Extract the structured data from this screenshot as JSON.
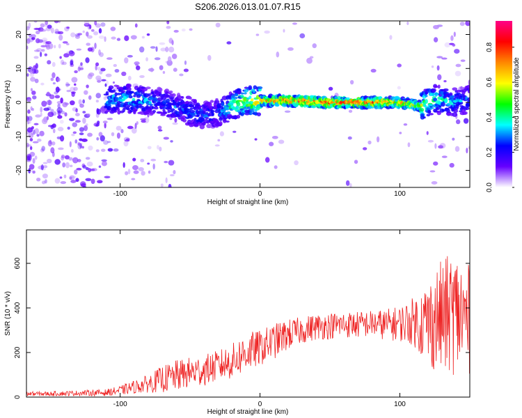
{
  "title": "S206.2026.013.01.07.R15",
  "chart_data": [
    {
      "type": "heatmap",
      "xlabel": "Height of straight line (km)",
      "ylabel": "Frequency (Hz)",
      "xlim": [
        -167,
        150
      ],
      "ylim": [
        -25,
        24
      ],
      "xticks": [
        -100,
        0,
        100
      ],
      "yticks": [
        -20,
        -10,
        0,
        10,
        20
      ],
      "colorbar": {
        "label": "Normalized spectral amplitude",
        "range": [
          0,
          0.95
        ],
        "ticks": [
          "0.0",
          "0.2",
          "0.4",
          "0.6",
          "0.8"
        ],
        "stops": [
          "#ffffff",
          "#6600ff",
          "#0000ff",
          "#00ffff",
          "#00ff00",
          "#ffff00",
          "#ff8800",
          "#ff0000",
          "#ff0088"
        ]
      },
      "ridge": {
        "x": [
          -110,
          -90,
          -70,
          -55,
          -40,
          -30,
          -20,
          -10,
          0,
          20,
          50,
          80,
          100,
          115,
          125,
          140,
          150
        ],
        "frequency": [
          1,
          1,
          0,
          -2,
          -4,
          -3,
          -1,
          0.5,
          0.5,
          0.5,
          0,
          0,
          0,
          -1,
          1,
          0,
          1
        ],
        "amplitude": [
          0.35,
          0.4,
          0.3,
          0.3,
          0.3,
          0.3,
          0.45,
          0.6,
          0.7,
          0.85,
          0.85,
          0.8,
          0.75,
          0.6,
          0.45,
          0.35,
          0.3
        ]
      }
    },
    {
      "type": "line",
      "xlabel": "Height of straight line (km)",
      "ylabel": "SNR (10 * v/v)",
      "xlim": [
        -167,
        150
      ],
      "ylim": [
        0,
        750
      ],
      "xticks": [
        -100,
        0,
        100
      ],
      "yticks": [
        0,
        200,
        400,
        600
      ],
      "color": "#ee2222",
      "x": [
        -167,
        -150,
        -130,
        -110,
        -100,
        -90,
        -80,
        -70,
        -60,
        -50,
        -40,
        -30,
        -20,
        -10,
        0,
        10,
        20,
        30,
        40,
        50,
        60,
        70,
        80,
        90,
        100,
        110,
        120,
        130,
        140,
        150
      ],
      "y": [
        15,
        15,
        18,
        20,
        30,
        45,
        60,
        80,
        95,
        110,
        120,
        140,
        160,
        200,
        220,
        250,
        280,
        300,
        315,
        320,
        325,
        325,
        330,
        325,
        330,
        340,
        330,
        360,
        380,
        340
      ],
      "spread": [
        10,
        10,
        12,
        15,
        20,
        30,
        40,
        60,
        70,
        70,
        70,
        70,
        80,
        90,
        80,
        80,
        70,
        60,
        60,
        60,
        60,
        60,
        60,
        70,
        80,
        110,
        200,
        260,
        280,
        250
      ]
    }
  ]
}
